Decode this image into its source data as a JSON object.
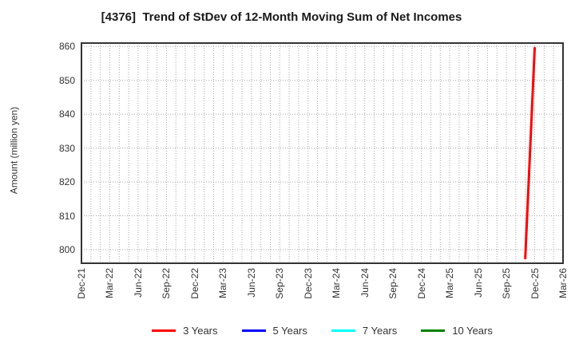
{
  "chart_data": {
    "type": "line",
    "title": "[4376]  Trend of StDev of 12-Month Moving Sum of Net Incomes",
    "ylabel": "Amount (million yen)",
    "xlabel": "",
    "x_tick_labels": [
      "Dec-21",
      "Mar-22",
      "Jun-22",
      "Sep-22",
      "Dec-22",
      "Mar-23",
      "Jun-23",
      "Sep-23",
      "Dec-23",
      "Mar-24",
      "Jun-24",
      "Sep-24",
      "Dec-24",
      "Mar-25",
      "Jun-25",
      "Sep-25",
      "Dec-25",
      "Mar-26"
    ],
    "months_per_tick": 3,
    "total_months": 51,
    "y_ticks": [
      800,
      810,
      820,
      830,
      840,
      850,
      860
    ],
    "ylim": [
      796,
      861
    ],
    "grid": true,
    "legend_position": "bottom",
    "series": [
      {
        "name": "3 Years",
        "color": "#ff0000",
        "points": [
          {
            "month_index": 47,
            "label": "Nov-25",
            "value": 797.5
          },
          {
            "month_index": 48,
            "label": "Dec-25",
            "value": 859.5
          }
        ]
      },
      {
        "name": "5 Years",
        "color": "#0000ff",
        "points": []
      },
      {
        "name": "7 Years",
        "color": "#00ffff",
        "points": []
      },
      {
        "name": "10 Years",
        "color": "#008000",
        "points": []
      }
    ]
  }
}
